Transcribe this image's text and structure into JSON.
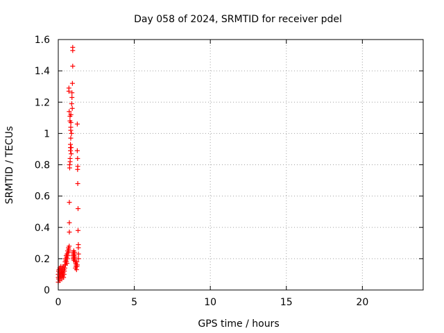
{
  "chart_data": {
    "type": "scatter",
    "title": "Day 058 of 2024, SRMTID for receiver pdel",
    "xlabel": "GPS time / hours",
    "ylabel": "SRMTID / TECUs",
    "xlim": [
      0,
      24
    ],
    "ylim": [
      0,
      1.6
    ],
    "xticks": [
      0,
      5,
      10,
      15,
      20
    ],
    "xtick_labels": [
      "0",
      "5",
      "10",
      "15",
      "20"
    ],
    "yticks": [
      0,
      0.2,
      0.4,
      0.6,
      0.8,
      1,
      1.2,
      1.4,
      1.6
    ],
    "ytick_labels": [
      "0",
      "0.2",
      "0.4",
      "0.6",
      "0.8",
      "1",
      "1.2",
      "1.4",
      "1.6"
    ],
    "grid": true,
    "marker": "+",
    "color": "#ff0000",
    "series": [
      {
        "name": "pdel",
        "points": [
          [
            0.0,
            0.05
          ],
          [
            0.0,
            0.08
          ],
          [
            0.0,
            0.1
          ],
          [
            0.02,
            0.12
          ],
          [
            0.03,
            0.07
          ],
          [
            0.05,
            0.13
          ],
          [
            0.07,
            0.09
          ],
          [
            0.08,
            0.11
          ],
          [
            0.1,
            0.06
          ],
          [
            0.1,
            0.14
          ],
          [
            0.12,
            0.1
          ],
          [
            0.13,
            0.08
          ],
          [
            0.15,
            0.12
          ],
          [
            0.17,
            0.15
          ],
          [
            0.18,
            0.09
          ],
          [
            0.2,
            0.11
          ],
          [
            0.22,
            0.13
          ],
          [
            0.23,
            0.07
          ],
          [
            0.25,
            0.1
          ],
          [
            0.27,
            0.14
          ],
          [
            0.28,
            0.12
          ],
          [
            0.3,
            0.09
          ],
          [
            0.32,
            0.11
          ],
          [
            0.33,
            0.15
          ],
          [
            0.35,
            0.08
          ],
          [
            0.37,
            0.13
          ],
          [
            0.38,
            0.1
          ],
          [
            0.4,
            0.12
          ],
          [
            0.42,
            0.16
          ],
          [
            0.43,
            0.14
          ],
          [
            0.45,
            0.18
          ],
          [
            0.47,
            0.2
          ],
          [
            0.48,
            0.16
          ],
          [
            0.5,
            0.19
          ],
          [
            0.52,
            0.22
          ],
          [
            0.53,
            0.18
          ],
          [
            0.55,
            0.21
          ],
          [
            0.57,
            0.17
          ],
          [
            0.58,
            0.23
          ],
          [
            0.6,
            0.2
          ],
          [
            0.62,
            0.25
          ],
          [
            0.63,
            0.22
          ],
          [
            0.65,
            0.24
          ],
          [
            0.67,
            0.27
          ],
          [
            0.68,
            0.26
          ],
          [
            0.7,
            0.25
          ],
          [
            0.72,
            0.28
          ],
          [
            0.7,
            1.27
          ],
          [
            0.7,
            1.29
          ],
          [
            0.72,
            1.14
          ],
          [
            0.73,
            0.56
          ],
          [
            0.73,
            0.43
          ],
          [
            0.73,
            0.37
          ],
          [
            0.75,
            0.78
          ],
          [
            0.75,
            0.8
          ],
          [
            0.77,
            1.11
          ],
          [
            0.77,
            1.08
          ],
          [
            0.78,
            0.84
          ],
          [
            0.78,
            0.82
          ],
          [
            0.8,
            0.89
          ],
          [
            0.8,
            0.91
          ],
          [
            0.8,
            0.93
          ],
          [
            0.82,
            1.04
          ],
          [
            0.82,
            1.02
          ],
          [
            0.82,
            0.97
          ],
          [
            0.83,
            1.07
          ],
          [
            0.83,
            1.12
          ],
          [
            0.85,
            0.87
          ],
          [
            0.85,
            0.91
          ],
          [
            0.87,
            1.0
          ],
          [
            0.88,
            1.19
          ],
          [
            0.9,
            1.26
          ],
          [
            0.9,
            1.23
          ],
          [
            0.92,
            1.16
          ],
          [
            0.93,
            1.32
          ],
          [
            0.95,
            1.43
          ],
          [
            0.95,
            1.53
          ],
          [
            0.95,
            1.55
          ],
          [
            0.97,
            0.24
          ],
          [
            0.97,
            0.22
          ],
          [
            0.98,
            0.2
          ],
          [
            1.0,
            0.21
          ],
          [
            1.0,
            0.23
          ],
          [
            1.02,
            0.25
          ],
          [
            1.03,
            0.19
          ],
          [
            1.05,
            0.22
          ],
          [
            1.07,
            0.2
          ],
          [
            1.08,
            0.24
          ],
          [
            1.1,
            0.21
          ],
          [
            1.12,
            0.18
          ],
          [
            1.13,
            0.14
          ],
          [
            1.15,
            0.17
          ],
          [
            1.17,
            0.15
          ],
          [
            1.18,
            0.16
          ],
          [
            1.2,
            0.13
          ],
          [
            1.22,
            0.18
          ],
          [
            1.23,
            0.15
          ],
          [
            1.25,
            0.16
          ],
          [
            1.25,
            0.89
          ],
          [
            1.25,
            1.06
          ],
          [
            1.27,
            0.84
          ],
          [
            1.27,
            0.77
          ],
          [
            1.28,
            0.79
          ],
          [
            1.28,
            0.68
          ],
          [
            1.3,
            0.52
          ],
          [
            1.3,
            0.38
          ],
          [
            1.32,
            0.29
          ],
          [
            1.32,
            0.27
          ],
          [
            1.33,
            0.23
          ],
          [
            1.33,
            0.2
          ]
        ]
      }
    ]
  }
}
